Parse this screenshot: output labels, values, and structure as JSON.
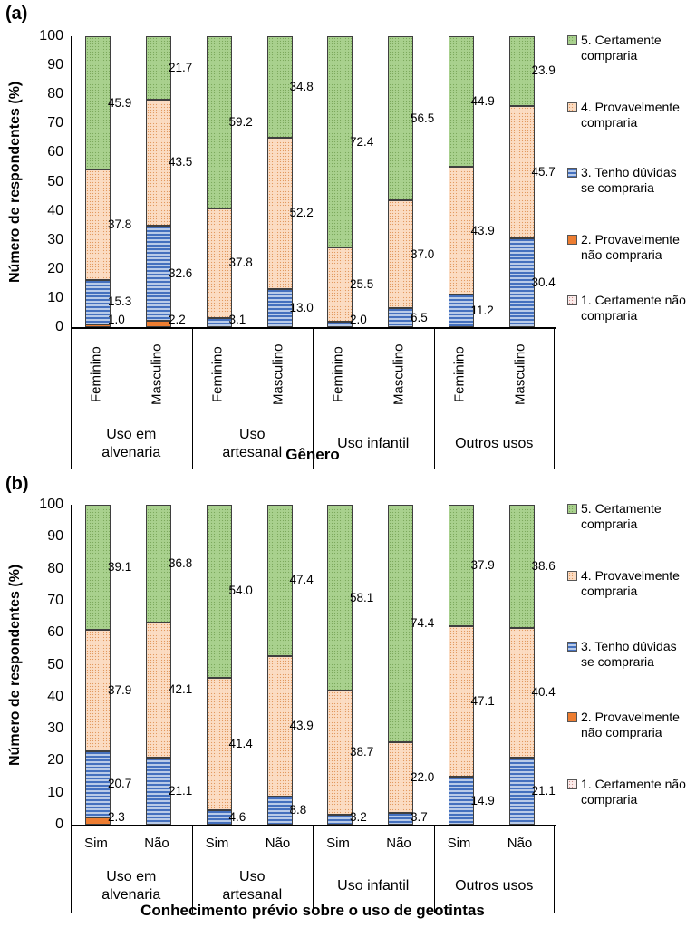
{
  "figure": {
    "background": "#FFFFFF",
    "category_colors": {
      "c5": {
        "base": "#A9D18E",
        "dot": "#7CA95C",
        "pattern": "dotted"
      },
      "c4": {
        "base": "#FBDCC3",
        "dot": "#E2995F",
        "pattern": "dotted"
      },
      "c3": {
        "stripe_dark": "#4470BE",
        "stripe_light": "#B9CBE8",
        "pattern": "horizontal-stripes"
      },
      "c2": {
        "base": "#ED7D31",
        "pattern": "solid"
      },
      "c1": {
        "base": "#FBECEB",
        "dot": "#CE8E8C",
        "pattern": "dotted"
      },
      "axis": "#000000"
    }
  },
  "chart_data": [
    {
      "type": "bar",
      "stacked": true,
      "panel": "(a)",
      "ylabel": "Número de respondentes (%)",
      "xlabel": "Gênero",
      "ylim": [
        0,
        100
      ],
      "yticks": [
        0,
        10,
        20,
        30,
        40,
        50,
        60,
        70,
        80,
        90,
        100
      ],
      "grid": false,
      "legend_position": "right",
      "bar_sublabel_orientation": "vertical",
      "categories_stack_order_bottom_to_top": [
        "1. Certamente não compraria",
        "2. Provavelmente não compraria",
        "3. Tenho dúvidas se compraria",
        "4. Provavelmente compraria",
        "5. Certamente compraria"
      ],
      "legend_order_top_to_bottom": [
        {
          "id": "c5",
          "label": "5. Certamente compraria"
        },
        {
          "id": "c4",
          "label": "4. Provavelmente compraria"
        },
        {
          "id": "c3",
          "label": "3. Tenho dúvidas se compraria"
        },
        {
          "id": "c2",
          "label": "2. Provavelmente não compraria"
        },
        {
          "id": "c1",
          "label": "1. Certamente não compraria"
        }
      ],
      "groups": [
        {
          "label": "Uso em alvenaria",
          "bars": [
            {
              "label": "Feminino",
              "values": [
                0,
                1.0,
                15.3,
                37.8,
                45.9
              ]
            },
            {
              "label": "Masculino",
              "values": [
                0,
                2.2,
                32.6,
                43.5,
                21.7
              ]
            }
          ]
        },
        {
          "label": "Uso artesanal",
          "bars": [
            {
              "label": "Feminino",
              "values": [
                0,
                0,
                3.1,
                37.8,
                59.2
              ]
            },
            {
              "label": "Masculino",
              "values": [
                0,
                0,
                13.0,
                52.2,
                34.8
              ]
            }
          ]
        },
        {
          "label": "Uso infantil",
          "bars": [
            {
              "label": "Feminino",
              "values": [
                0,
                0,
                2.0,
                25.5,
                72.4
              ]
            },
            {
              "label": "Masculino",
              "values": [
                0,
                0,
                6.5,
                37.0,
                56.5
              ]
            }
          ]
        },
        {
          "label": "Outros usos",
          "bars": [
            {
              "label": "Feminino",
              "values": [
                0,
                0,
                11.2,
                43.9,
                44.9
              ]
            },
            {
              "label": "Masculino",
              "values": [
                0,
                0,
                30.4,
                45.7,
                23.9
              ]
            }
          ]
        }
      ]
    },
    {
      "type": "bar",
      "stacked": true,
      "panel": "(b)",
      "ylabel": "Número de respondentes (%)",
      "xlabel": "Conhecimento prévio sobre o uso de geotintas",
      "ylim": [
        0,
        100
      ],
      "yticks": [
        0,
        10,
        20,
        30,
        40,
        50,
        60,
        70,
        80,
        90,
        100
      ],
      "grid": false,
      "legend_position": "right",
      "bar_sublabel_orientation": "horizontal",
      "categories_stack_order_bottom_to_top": [
        "1. Certamente não compraria",
        "2. Provavelmente não compraria",
        "3. Tenho dúvidas se compraria",
        "4. Provavelmente compraria",
        "5. Certamente compraria"
      ],
      "legend_order_top_to_bottom": [
        {
          "id": "c5",
          "label": "5. Certamente compraria"
        },
        {
          "id": "c4",
          "label": "4. Provavelmente compraria"
        },
        {
          "id": "c3",
          "label": "3. Tenho dúvidas se compraria"
        },
        {
          "id": "c2",
          "label": "2. Provavelmente não compraria"
        },
        {
          "id": "c1",
          "label": "1. Certamente não compraria"
        }
      ],
      "groups": [
        {
          "label": "Uso em alvenaria",
          "bars": [
            {
              "label": "Sim",
              "values": [
                0,
                2.3,
                20.7,
                37.9,
                39.1
              ]
            },
            {
              "label": "Não",
              "values": [
                0,
                0,
                21.1,
                42.1,
                36.8
              ]
            }
          ]
        },
        {
          "label": "Uso artesanal",
          "bars": [
            {
              "label": "Sim",
              "values": [
                0,
                0,
                4.6,
                41.4,
                54.0
              ]
            },
            {
              "label": "Não",
              "values": [
                0,
                0,
                8.8,
                43.9,
                47.4
              ]
            }
          ]
        },
        {
          "label": "Uso infantil",
          "bars": [
            {
              "label": "Sim",
              "values": [
                0,
                0,
                3.2,
                38.7,
                58.1
              ]
            },
            {
              "label": "Não",
              "values": [
                0,
                0,
                3.7,
                22.0,
                74.4
              ]
            }
          ]
        },
        {
          "label": "Outros usos",
          "bars": [
            {
              "label": "Sim",
              "values": [
                0,
                0,
                14.9,
                47.1,
                37.9
              ]
            },
            {
              "label": "Não",
              "values": [
                0,
                0,
                21.1,
                40.4,
                38.6
              ]
            }
          ]
        }
      ]
    }
  ]
}
